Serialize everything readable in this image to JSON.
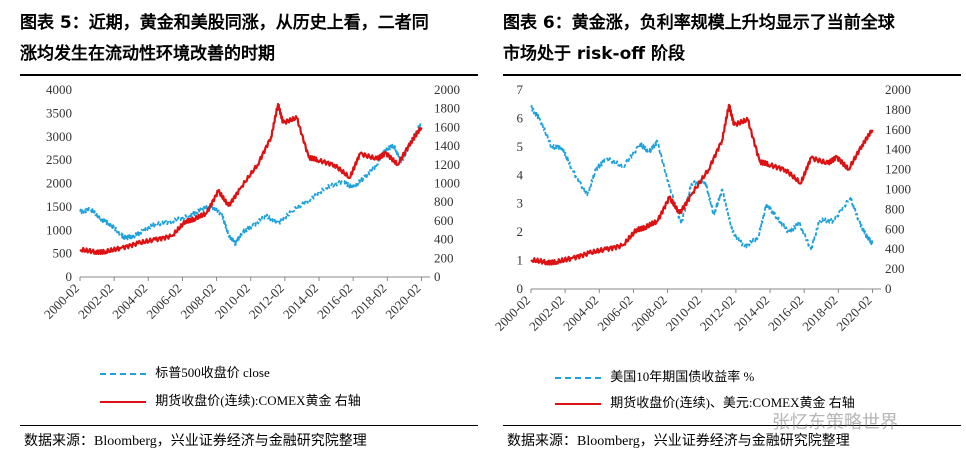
{
  "left_panel": {
    "title_line1": "图表 5：近期，黄金和美股同涨，从历史上看，二者同",
    "title_line2": "涨均发生在流动性环境改善的时期",
    "source": "数据来源：Bloomberg，兴业证券经济与金融研究院整理"
  },
  "right_panel": {
    "title_line1": "图表 6：黄金涨，负利率规模上升均显示了当前全球",
    "title_line2": "市场处于 risk-off 阶段",
    "source": "数据来源：Bloomberg，兴业证券经济与金融研究院整理"
  },
  "watermark": "张忆东策略世界",
  "colors": {
    "blue": "#1da1dc",
    "red": "#dd1111",
    "axis": "#888888"
  },
  "chart_data": [
    {
      "type": "line",
      "x_tick_labels": [
        "2000-02",
        "2002-02",
        "2004-02",
        "2006-02",
        "2008-02",
        "2010-02",
        "2012-02",
        "2014-02",
        "2016-02",
        "2018-02",
        "2020-02"
      ],
      "x_range": [
        2000.1,
        2020.6
      ],
      "left_axis": {
        "ylim": [
          0,
          4000
        ],
        "ticks": [
          "0",
          "500",
          "1000",
          "1500",
          "2000",
          "2500",
          "3000",
          "3500",
          "4000"
        ]
      },
      "right_axis": {
        "ylim": [
          0,
          2000
        ],
        "ticks": [
          "0",
          "200",
          "400",
          "600",
          "800",
          "1000",
          "1200",
          "1400",
          "1600",
          "1800",
          "2000"
        ]
      },
      "series": [
        {
          "name": "标普500收盘价 close",
          "axis": "left",
          "style": "dashed",
          "color": "#1da1dc",
          "x": [
            2000.1,
            2000.7,
            2001.3,
            2001.8,
            2002.5,
            2002.8,
            2003.2,
            2003.8,
            2004.5,
            2005.5,
            2006.5,
            2007.2,
            2007.8,
            2008.4,
            2008.8,
            2009.2,
            2009.6,
            2010.2,
            2011.0,
            2011.7,
            2012.5,
            2013.5,
            2014.5,
            2015.5,
            2016.1,
            2016.8,
            2017.5,
            2018.0,
            2018.5,
            2018.9,
            2019.5,
            2020.1
          ],
          "y": [
            1400,
            1450,
            1250,
            1150,
            900,
            840,
            860,
            1000,
            1120,
            1200,
            1300,
            1450,
            1500,
            1350,
            900,
            720,
            950,
            1100,
            1300,
            1150,
            1400,
            1650,
            1900,
            2050,
            1900,
            2150,
            2400,
            2750,
            2800,
            2450,
            2900,
            3300
          ]
        },
        {
          "name": "期货收盘价(连续):COMEX黄金 右轴",
          "axis": "right",
          "style": "solid",
          "color": "#dd1111",
          "x": [
            2000.1,
            2001.0,
            2001.6,
            2002.5,
            2003.5,
            2004.5,
            2005.5,
            2006.3,
            2006.8,
            2007.5,
            2008.2,
            2008.8,
            2009.5,
            2010.5,
            2011.3,
            2011.7,
            2012.0,
            2012.8,
            2013.5,
            2014.0,
            2015.0,
            2015.9,
            2016.5,
            2017.5,
            2018.0,
            2018.7,
            2019.5,
            2020.1
          ],
          "y": [
            290,
            270,
            270,
            310,
            360,
            400,
            440,
            600,
            620,
            680,
            920,
            760,
            950,
            1200,
            1500,
            1850,
            1650,
            1700,
            1280,
            1250,
            1200,
            1060,
            1320,
            1260,
            1330,
            1200,
            1450,
            1600
          ]
        }
      ]
    },
    {
      "type": "line",
      "x_tick_labels": [
        "2000-02",
        "2002-02",
        "2004-02",
        "2006-02",
        "2008-02",
        "2010-02",
        "2012-02",
        "2014-02",
        "2016-02",
        "2018-02",
        "2020-02"
      ],
      "x_range": [
        2000.1,
        2020.6
      ],
      "left_axis": {
        "ylim": [
          0,
          7
        ],
        "ticks": [
          "0",
          "1",
          "2",
          "3",
          "4",
          "5",
          "6",
          "7"
        ]
      },
      "right_axis": {
        "ylim": [
          0,
          2000
        ],
        "ticks": [
          "0",
          "200",
          "400",
          "600",
          "800",
          "1000",
          "1200",
          "1400",
          "1600",
          "1800",
          "2000"
        ]
      },
      "series": [
        {
          "name": "美国10年期国债收益率 %",
          "axis": "left",
          "style": "dashed",
          "color": "#1da1dc",
          "x": [
            2000.1,
            2000.6,
            2001.3,
            2001.9,
            2002.5,
            2003.4,
            2003.9,
            2004.5,
            2005.5,
            2006.5,
            2007.0,
            2007.5,
            2008.2,
            2008.9,
            2009.5,
            2010.3,
            2010.8,
            2011.3,
            2011.9,
            2012.6,
            2013.4,
            2013.9,
            2014.5,
            2015.2,
            2015.8,
            2016.5,
            2017.0,
            2017.8,
            2018.8,
            2019.3,
            2019.8,
            2020.1
          ],
          "y": [
            6.4,
            6.0,
            5.0,
            5.0,
            4.2,
            3.3,
            4.2,
            4.6,
            4.3,
            5.1,
            4.8,
            5.2,
            3.6,
            2.3,
            3.7,
            3.8,
            2.6,
            3.5,
            2.0,
            1.5,
            1.8,
            3.0,
            2.5,
            2.0,
            2.3,
            1.4,
            2.4,
            2.4,
            3.2,
            2.4,
            1.8,
            1.6
          ]
        },
        {
          "name": "期货收盘价(连续)、美元:COMEX黄金 右轴",
          "axis": "right",
          "style": "solid",
          "color": "#dd1111",
          "x": [
            2000.1,
            2001.0,
            2001.6,
            2002.5,
            2003.5,
            2004.5,
            2005.5,
            2006.3,
            2006.8,
            2007.5,
            2008.2,
            2008.8,
            2009.5,
            2010.5,
            2011.3,
            2011.7,
            2012.0,
            2012.8,
            2013.5,
            2014.0,
            2015.0,
            2015.9,
            2016.5,
            2017.5,
            2018.0,
            2018.7,
            2019.5,
            2020.1
          ],
          "y": [
            290,
            270,
            270,
            310,
            360,
            400,
            440,
            600,
            620,
            680,
            920,
            760,
            950,
            1200,
            1500,
            1850,
            1650,
            1700,
            1280,
            1250,
            1200,
            1060,
            1320,
            1260,
            1330,
            1200,
            1450,
            1600
          ]
        }
      ]
    }
  ]
}
